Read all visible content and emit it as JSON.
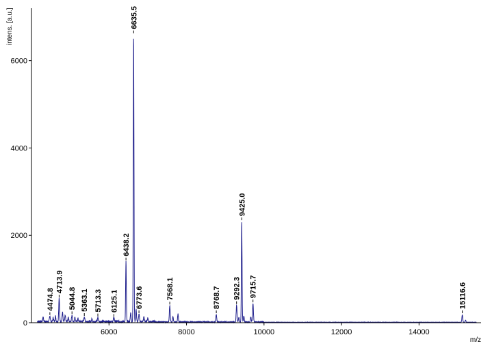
{
  "chart_data": {
    "type": "line",
    "title": "",
    "xlabel": "m/z",
    "ylabel": "intens. [a.u.]",
    "xlim": [
      4000,
      15600
    ],
    "ylim": [
      0,
      7200
    ],
    "x_ticks": [
      6000,
      8000,
      10000,
      12000,
      14000
    ],
    "y_ticks": [
      0,
      2000,
      4000,
      6000
    ],
    "grid": false,
    "colors": {
      "trace": "#1f1f8c",
      "axis": "#000000",
      "marker": "#000000"
    },
    "peaks": [
      {
        "label": "4474.8",
        "x": 4474.8,
        "y": 130
      },
      {
        "label": "4713.9",
        "x": 4713.9,
        "y": 530
      },
      {
        "label": "5044.8",
        "x": 5044.8,
        "y": 150
      },
      {
        "label": "5363.1",
        "x": 5363.1,
        "y": 110
      },
      {
        "label": "5713.3",
        "x": 5713.3,
        "y": 100
      },
      {
        "label": "6125.1",
        "x": 6125.1,
        "y": 90
      },
      {
        "label": "6438.2",
        "x": 6438.2,
        "y": 1380
      },
      {
        "label": "6635.5",
        "x": 6635.5,
        "y": 6580
      },
      {
        "label": "6773.6",
        "x": 6773.6,
        "y": 170
      },
      {
        "label": "7568.1",
        "x": 7568.1,
        "y": 370
      },
      {
        "label": "8768.7",
        "x": 8768.7,
        "y": 170
      },
      {
        "label": "9292.3",
        "x": 9292.3,
        "y": 380
      },
      {
        "label": "9425.0",
        "x": 9425.0,
        "y": 2300
      },
      {
        "label": "9715.7",
        "x": 9715.7,
        "y": 420
      },
      {
        "label": "15116.6",
        "x": 15116.6,
        "y": 170
      }
    ],
    "minor_peaks": [
      {
        "x": 4300,
        "y": 110
      },
      {
        "x": 4560,
        "y": 90
      },
      {
        "x": 4620,
        "y": 120
      },
      {
        "x": 4800,
        "y": 210
      },
      {
        "x": 4870,
        "y": 140
      },
      {
        "x": 4950,
        "y": 100
      },
      {
        "x": 5120,
        "y": 90
      },
      {
        "x": 5200,
        "y": 70
      },
      {
        "x": 5560,
        "y": 60
      },
      {
        "x": 6560,
        "y": 200
      },
      {
        "x": 6700,
        "y": 280
      },
      {
        "x": 6900,
        "y": 110
      },
      {
        "x": 7000,
        "y": 80
      },
      {
        "x": 7650,
        "y": 120
      },
      {
        "x": 7780,
        "y": 190
      },
      {
        "x": 9350,
        "y": 110
      },
      {
        "x": 9480,
        "y": 140
      },
      {
        "x": 9660,
        "y": 120
      },
      {
        "x": 15200,
        "y": 50
      }
    ]
  }
}
